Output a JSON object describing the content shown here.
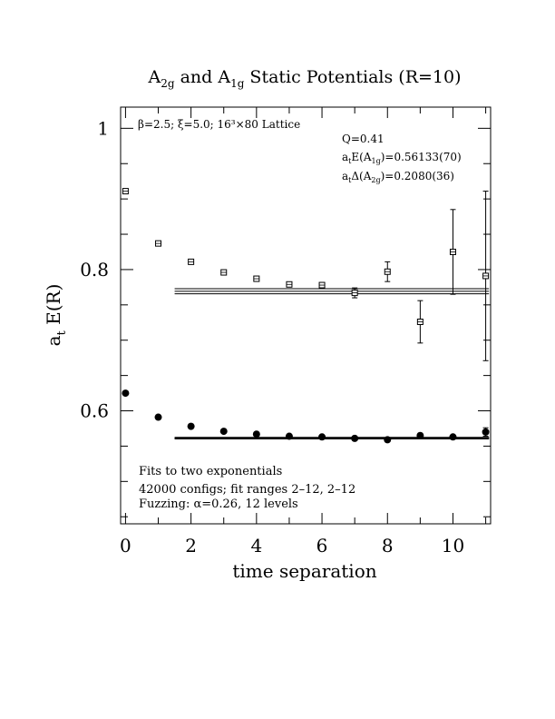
{
  "chart_data": {
    "type": "scatter",
    "title": {
      "part1": "A",
      "part1_sub": "2g",
      "part2": " and A",
      "part2_sub": "1g",
      "part3": " Static Potentials (R=10)"
    },
    "xlabel": "time separation",
    "ylabel": {
      "main": "a",
      "sub": "t",
      "rest": " E(R)"
    },
    "xlim": [
      -0.15,
      11.15
    ],
    "ylim": [
      0.44,
      1.03
    ],
    "x_ticks": [
      0,
      2,
      4,
      6,
      8,
      10
    ],
    "y_ticks": [
      "0.6",
      "0.8",
      "1"
    ],
    "y_tick_values": [
      0.6,
      0.8,
      1.0
    ],
    "grid": false,
    "annotations": {
      "lattice": "β=2.5; ξ=5.0; 16³×80 Lattice",
      "q": "Q=0.41",
      "energy_prefix": "a",
      "energy_sub1": "t",
      "energy_mid": "E(A",
      "energy_sub2": "1g",
      "energy_value": ")=0.56133(70)",
      "delta_prefix": "a",
      "delta_sub1": "t",
      "delta_mid": "Δ(A",
      "delta_sub2": "2g",
      "delta_value": ")=0.2080(36)",
      "fits": "Fits to two exponentials",
      "configs": "42000 configs; fit ranges 2–12, 2–12",
      "fuzzing": "Fuzzing: α=0.26, 12 levels"
    },
    "series": [
      {
        "name": "A2g",
        "marker": "open-square",
        "points": [
          {
            "x": 0,
            "y": 0.911,
            "err": 0.004
          },
          {
            "x": 1,
            "y": 0.837,
            "err": 0.004
          },
          {
            "x": 2,
            "y": 0.811,
            "err": 0.004
          },
          {
            "x": 3,
            "y": 0.796,
            "err": 0.004
          },
          {
            "x": 4,
            "y": 0.787,
            "err": 0.004
          },
          {
            "x": 5,
            "y": 0.779,
            "err": 0.004
          },
          {
            "x": 6,
            "y": 0.778,
            "err": 0.004
          },
          {
            "x": 7,
            "y": 0.767,
            "err": 0.007
          },
          {
            "x": 8,
            "y": 0.797,
            "err": 0.014
          },
          {
            "x": 9,
            "y": 0.726,
            "err": 0.03
          },
          {
            "x": 10,
            "y": 0.825,
            "err": 0.06
          },
          {
            "x": 11,
            "y": 0.791,
            "err": 0.12
          }
        ],
        "fit": {
          "x_start": 1.5,
          "x_end": 11.1,
          "y": 0.7693,
          "err": 0.0036
        }
      },
      {
        "name": "A1g",
        "marker": "filled-circle",
        "points": [
          {
            "x": 0,
            "y": 0.625,
            "err": 0.0
          },
          {
            "x": 1,
            "y": 0.591,
            "err": 0.0
          },
          {
            "x": 2,
            "y": 0.578,
            "err": 0.0
          },
          {
            "x": 3,
            "y": 0.571,
            "err": 0.0
          },
          {
            "x": 4,
            "y": 0.567,
            "err": 0.0
          },
          {
            "x": 5,
            "y": 0.564,
            "err": 0.0
          },
          {
            "x": 6,
            "y": 0.563,
            "err": 0.0
          },
          {
            "x": 7,
            "y": 0.561,
            "err": 0.0
          },
          {
            "x": 8,
            "y": 0.559,
            "err": 0.0
          },
          {
            "x": 9,
            "y": 0.565,
            "err": 0.0
          },
          {
            "x": 10,
            "y": 0.563,
            "err": 0.0
          },
          {
            "x": 11,
            "y": 0.57,
            "err": 0.006
          }
        ],
        "fit": {
          "x_start": 1.5,
          "x_end": 11.1,
          "y": 0.5613,
          "err": 0.0007
        }
      }
    ]
  }
}
